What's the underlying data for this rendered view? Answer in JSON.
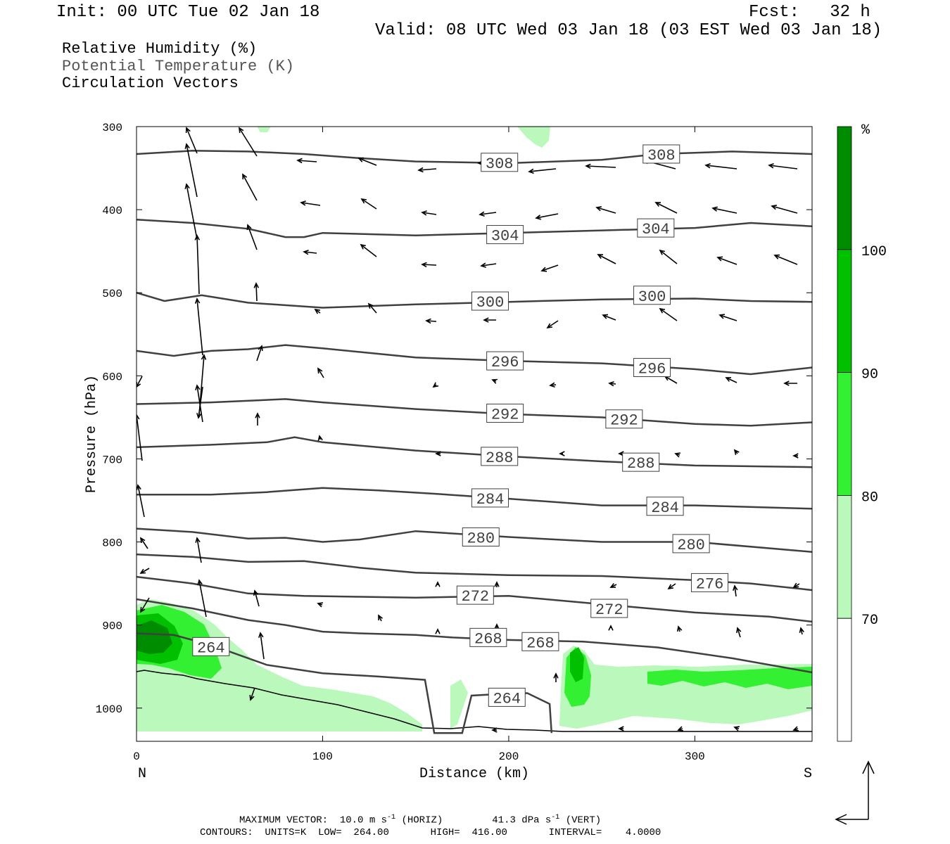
{
  "header": {
    "init": "Init: 00 UTC Tue 02 Jan 18",
    "fcst": "Fcst:   32 h",
    "valid": "Valid: 08 UTC Wed 03 Jan 18 (03 EST Wed 03 Jan 18)"
  },
  "legend": {
    "rh": "Relative Humidity (%)",
    "theta": "Potential Temperature (K)",
    "vectors": "Circulation Vectors"
  },
  "footer": {
    "max_vector_prefix": "MAXIMUM VECTOR:  10.0 m s",
    "horiz_suffix": " (HORIZ)",
    "vert_value": "41.3 dPa s",
    "vert_suffix": " (VERT)",
    "exp": "-1",
    "contours": "CONTOURS:  UNITS=K  LOW=  264.00       HIGH=  416.00       INTERVAL=    4.0000"
  },
  "colors": {
    "rh70": "#bbf8bb",
    "rh80": "#33f033",
    "rh90": "#00c000",
    "rh100": "#008c00",
    "contour": "#404040"
  },
  "chart_data": {
    "type": "contour",
    "xlabel": "Distance (km)",
    "ylabel": "Pressure (hPa)",
    "x_ticks": [
      0,
      100,
      200,
      300
    ],
    "x_tick_labels": [
      "0",
      "100",
      "200",
      "300"
    ],
    "xlim": [
      0,
      363
    ],
    "y_ticks": [
      300,
      400,
      500,
      600,
      700,
      800,
      900,
      1000
    ],
    "y_tick_labels": [
      "300",
      "400",
      "500",
      "600",
      "700",
      "800",
      "900",
      "1000"
    ],
    "ylim": [
      300,
      1040
    ],
    "y_inverted": true,
    "end_labels": {
      "left": "N",
      "right": "S"
    },
    "colorbar": {
      "unit": "%",
      "levels": [
        70,
        80,
        90,
        100
      ],
      "level_labels": [
        "70",
        "80",
        "90",
        "100"
      ],
      "colors": [
        "#ffffff",
        "#bbf8bb",
        "#33f033",
        "#00c000",
        "#008c00"
      ]
    },
    "theta_contours": [
      {
        "label": "308",
        "label_at": [
          [
            195,
            343
          ],
          [
            282,
            333
          ]
        ],
        "points": [
          [
            0,
            333
          ],
          [
            30,
            329
          ],
          [
            60,
            330
          ],
          [
            90,
            333
          ],
          [
            120,
            338
          ],
          [
            150,
            342
          ],
          [
            200,
            344
          ],
          [
            250,
            340
          ],
          [
            280,
            333
          ],
          [
            320,
            330
          ],
          [
            363,
            333
          ]
        ]
      },
      {
        "label": "304",
        "label_at": [
          [
            198,
            430
          ],
          [
            279,
            422
          ]
        ],
        "points": [
          [
            0,
            412
          ],
          [
            30,
            416
          ],
          [
            60,
            423
          ],
          [
            80,
            433
          ],
          [
            90,
            433
          ],
          [
            100,
            428
          ],
          [
            150,
            431
          ],
          [
            200,
            428
          ],
          [
            250,
            425
          ],
          [
            300,
            422
          ],
          [
            330,
            416
          ],
          [
            363,
            420
          ]
        ]
      },
      {
        "label": "300",
        "label_at": [
          [
            190,
            510
          ],
          [
            277,
            503
          ]
        ],
        "points": [
          [
            0,
            500
          ],
          [
            15,
            510
          ],
          [
            35,
            503
          ],
          [
            60,
            512
          ],
          [
            100,
            518
          ],
          [
            150,
            514
          ],
          [
            200,
            511
          ],
          [
            250,
            508
          ],
          [
            300,
            507
          ],
          [
            330,
            510
          ],
          [
            363,
            511
          ]
        ]
      },
      {
        "label": "296",
        "label_at": [
          [
            198,
            582
          ],
          [
            277,
            590
          ]
        ],
        "points": [
          [
            0,
            570
          ],
          [
            20,
            576
          ],
          [
            40,
            570
          ],
          [
            60,
            568
          ],
          [
            80,
            563
          ],
          [
            100,
            567
          ],
          [
            150,
            578
          ],
          [
            200,
            582
          ],
          [
            250,
            585
          ],
          [
            300,
            592
          ],
          [
            330,
            598
          ],
          [
            363,
            590
          ]
        ]
      },
      {
        "label": "292",
        "label_at": [
          [
            198,
            645
          ],
          [
            262,
            652
          ]
        ],
        "points": [
          [
            0,
            634
          ],
          [
            40,
            632
          ],
          [
            80,
            628
          ],
          [
            100,
            632
          ],
          [
            150,
            640
          ],
          [
            200,
            646
          ],
          [
            250,
            650
          ],
          [
            300,
            658
          ],
          [
            330,
            660
          ],
          [
            363,
            656
          ]
        ]
      },
      {
        "label": "288",
        "label_at": [
          [
            195,
            697
          ],
          [
            271,
            704
          ]
        ],
        "points": [
          [
            0,
            686
          ],
          [
            40,
            683
          ],
          [
            70,
            680
          ],
          [
            85,
            674
          ],
          [
            100,
            680
          ],
          [
            150,
            690
          ],
          [
            200,
            697
          ],
          [
            250,
            703
          ],
          [
            300,
            708
          ],
          [
            363,
            710
          ]
        ]
      },
      {
        "label": "284",
        "label_at": [
          [
            190,
            747
          ],
          [
            284,
            757
          ]
        ],
        "points": [
          [
            0,
            743
          ],
          [
            40,
            743
          ],
          [
            70,
            740
          ],
          [
            100,
            735
          ],
          [
            130,
            738
          ],
          [
            160,
            742
          ],
          [
            200,
            748
          ],
          [
            250,
            756
          ],
          [
            300,
            756
          ],
          [
            363,
            760
          ]
        ]
      },
      {
        "label": "280",
        "label_at": [
          [
            185,
            794
          ],
          [
            298,
            802
          ]
        ],
        "points": [
          [
            0,
            784
          ],
          [
            30,
            788
          ],
          [
            60,
            796
          ],
          [
            80,
            795
          ],
          [
            100,
            800
          ],
          [
            120,
            797
          ],
          [
            150,
            787
          ],
          [
            200,
            794
          ],
          [
            250,
            800
          ],
          [
            300,
            800
          ],
          [
            363,
            812
          ]
        ]
      },
      {
        "label": "276",
        "label_at": [
          [
            308,
            849
          ]
        ],
        "points": [
          [
            0,
            815
          ],
          [
            30,
            818
          ],
          [
            60,
            824
          ],
          [
            90,
            823
          ],
          [
            120,
            831
          ],
          [
            150,
            837
          ],
          [
            200,
            840
          ],
          [
            250,
            841
          ],
          [
            300,
            846
          ],
          [
            330,
            850
          ],
          [
            363,
            858
          ]
        ]
      },
      {
        "label": "272",
        "label_at": [
          [
            182,
            864
          ],
          [
            254,
            880
          ]
        ],
        "points": [
          [
            0,
            842
          ],
          [
            30,
            850
          ],
          [
            60,
            862
          ],
          [
            90,
            865
          ],
          [
            120,
            866
          ],
          [
            150,
            867
          ],
          [
            200,
            865
          ],
          [
            250,
            875
          ],
          [
            300,
            885
          ],
          [
            340,
            890
          ],
          [
            363,
            896
          ]
        ]
      },
      {
        "label": "268",
        "label_at": [
          [
            189,
            915
          ],
          [
            217,
            920
          ]
        ],
        "points": [
          [
            0,
            869
          ],
          [
            30,
            880
          ],
          [
            60,
            894
          ],
          [
            80,
            900
          ],
          [
            100,
            908
          ],
          [
            120,
            910
          ],
          [
            150,
            912
          ],
          [
            170,
            915
          ],
          [
            200,
            918
          ],
          [
            240,
            920
          ],
          [
            280,
            927
          ],
          [
            320,
            940
          ],
          [
            363,
            957
          ]
        ]
      },
      {
        "label": "264",
        "label_at": [
          [
            40,
            926
          ],
          [
            199,
            987
          ]
        ],
        "points": [
          [
            0,
            910
          ],
          [
            20,
            912
          ],
          [
            40,
            924
          ],
          [
            55,
            936
          ],
          [
            70,
            948
          ],
          [
            100,
            958
          ],
          [
            130,
            962
          ],
          [
            155,
            966
          ],
          [
            160,
            1030
          ],
          [
            175,
            1030
          ],
          [
            180,
            985
          ],
          [
            195,
            983
          ],
          [
            210,
            982
          ],
          [
            222,
            995
          ],
          [
            223,
            1030
          ]
        ]
      }
    ],
    "rh_regions": [
      {
        "level": "70-80",
        "desc": "low-level moist layer north end, 0-120 km, 870-1020 hPa"
      },
      {
        "level": "80-100",
        "desc": "north end core, 0-45 km, 875-960 hPa"
      },
      {
        "level": "70-80",
        "desc": "south plume 225-363 km, 925-1030 hPa"
      },
      {
        "level": "80-100",
        "desc": "narrow core near 235 km, 930-1010 hPa"
      },
      {
        "level": "70-80",
        "desc": "upper patches near 65 km and 215 km at 300-325 hPa"
      }
    ],
    "vectors": "circulation vectors; maximum 10.0 m s-1 horizontal, 41.3 dPa s-1 vertical"
  }
}
